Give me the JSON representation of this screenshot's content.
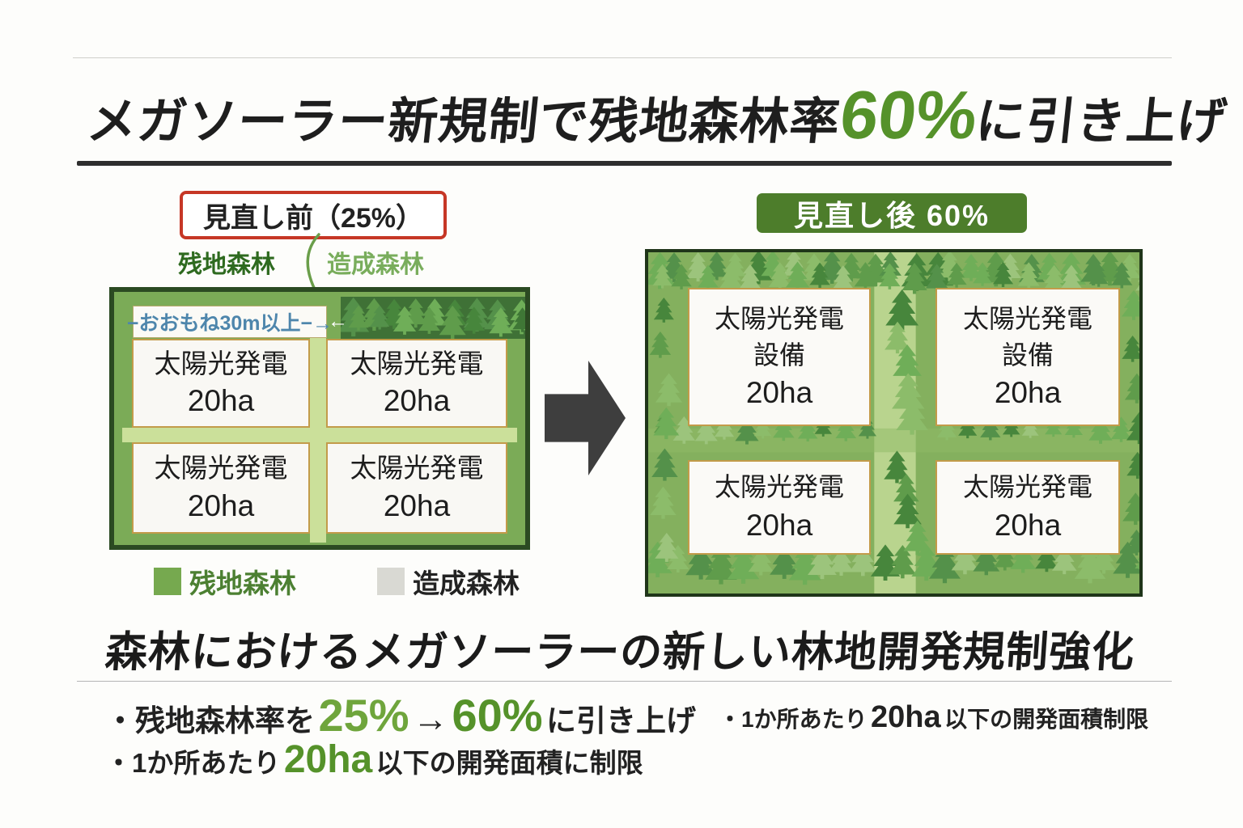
{
  "title": {
    "prefix": "メガソーラー新規制で残地森林率",
    "highlight": "60%",
    "suffix": "に引き上げ"
  },
  "before": {
    "badge": "見直し前（25%）",
    "label_remaining": "残地森林",
    "label_created": "造成森林",
    "strip_text": "−おおもね30m以上−→",
    "strip_arrow": "←",
    "boxes": [
      {
        "line1": "太陽光発電",
        "line2": "20ha"
      },
      {
        "line1": "太陽光発電",
        "line2": "20ha"
      },
      {
        "line1": "太陽光発電",
        "line2": "20ha"
      },
      {
        "line1": "太陽光発電",
        "line2": "20ha"
      }
    ],
    "legend": [
      {
        "label": "残地森林",
        "color": "#76a94f"
      },
      {
        "label": "造成森林",
        "color": "#d9d9d3"
      }
    ]
  },
  "after": {
    "badge": "見直し後 60%",
    "top_boxes": [
      {
        "line1": "太陽光発電",
        "line2": "設備",
        "line3": "20ha"
      },
      {
        "line1": "太陽光発電",
        "line2": "設備",
        "line3": "20ha"
      }
    ],
    "bottom_boxes": [
      {
        "line1": "太陽光発電",
        "line2": "20ha"
      },
      {
        "line1": "太陽光発電",
        "line2": "20ha"
      }
    ]
  },
  "footer": {
    "heading": "森林におけるメガソーラーの新しい林地開発規制強化",
    "point1": {
      "pre": "・残地森林率を",
      "from": "25%",
      "arrow": "→",
      "to": "60%",
      "post": "に引き上げ"
    },
    "point1b": {
      "pre": "・1か所あたり",
      "value": "20ha",
      "post": "以下の開発面積制限"
    },
    "point2": {
      "pre": "・1か所あたり",
      "value": "20ha",
      "post": "以下の開発面積に制限"
    }
  },
  "colors": {
    "title_highlight_green": "#55922a",
    "before_badge_border_red": "#c63726",
    "after_badge_green": "#4d7d2b",
    "remaining_forest_green": "#76a94f",
    "created_forest_gray": "#d9d9d3",
    "forest_base_green": "#84b05e",
    "corridor_light_green": "#b9d48e",
    "strip_text_blue": "#4e86ac",
    "transition_arrow_gray": "#3e3e3e"
  }
}
